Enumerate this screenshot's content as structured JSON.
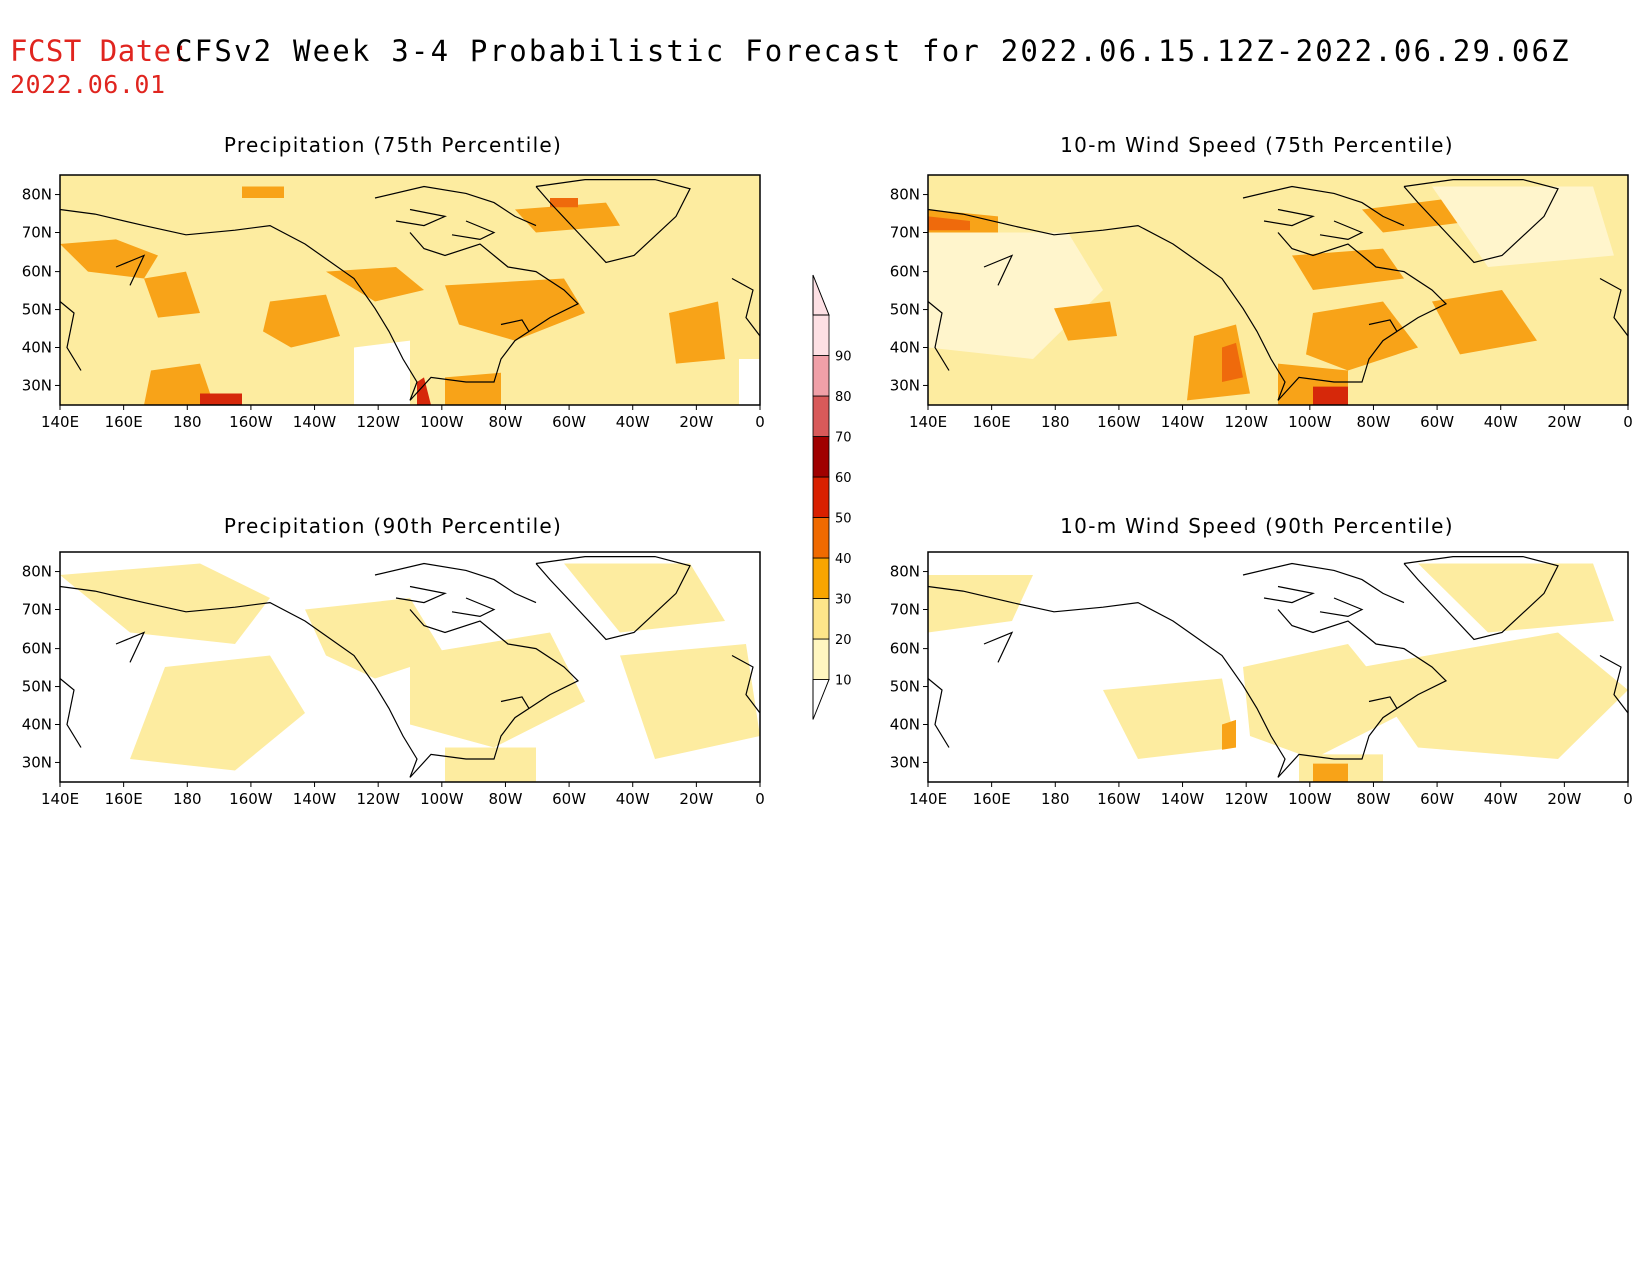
{
  "header": {
    "fcst_label": "FCST Date:",
    "fcst_date": "2022.06.01",
    "title": "CFSv2 Week 3-4 Probabilistic Forecast for 2022.06.15.12Z-2022.06.29.06Z"
  },
  "panels": [
    {
      "id": "precip75",
      "title": "Precipitation (75th Percentile)"
    },
    {
      "id": "wind75",
      "title": "10-m Wind Speed (75th Percentile)"
    },
    {
      "id": "precip90",
      "title": "Precipitation (90th Percentile)"
    },
    {
      "id": "wind90",
      "title": "10-m Wind Speed (90th Percentile)"
    }
  ],
  "lat_ticks": [
    "80N",
    "70N",
    "60N",
    "50N",
    "40N",
    "30N"
  ],
  "lon_ticks": [
    "140E",
    "160E",
    "180",
    "160W",
    "140W",
    "120W",
    "100W",
    "80W",
    "60W",
    "40W",
    "20W",
    "0"
  ],
  "colorbar": {
    "levels": [
      "10",
      "20",
      "30",
      "40",
      "50",
      "60",
      "70",
      "80",
      "90"
    ],
    "colors": [
      "#fff6c0",
      "#fde58a",
      "#f9a500",
      "#f06a00",
      "#d92000",
      "#a00000",
      "#d85a5a",
      "#f0a0a8",
      "#fde0e4"
    ]
  },
  "palette": {
    "light_yellow": "#fdeca0",
    "orange": "#f8a318",
    "dark_orange": "#ef6a0c",
    "red": "#d6280a",
    "white": "#ffffff"
  }
}
